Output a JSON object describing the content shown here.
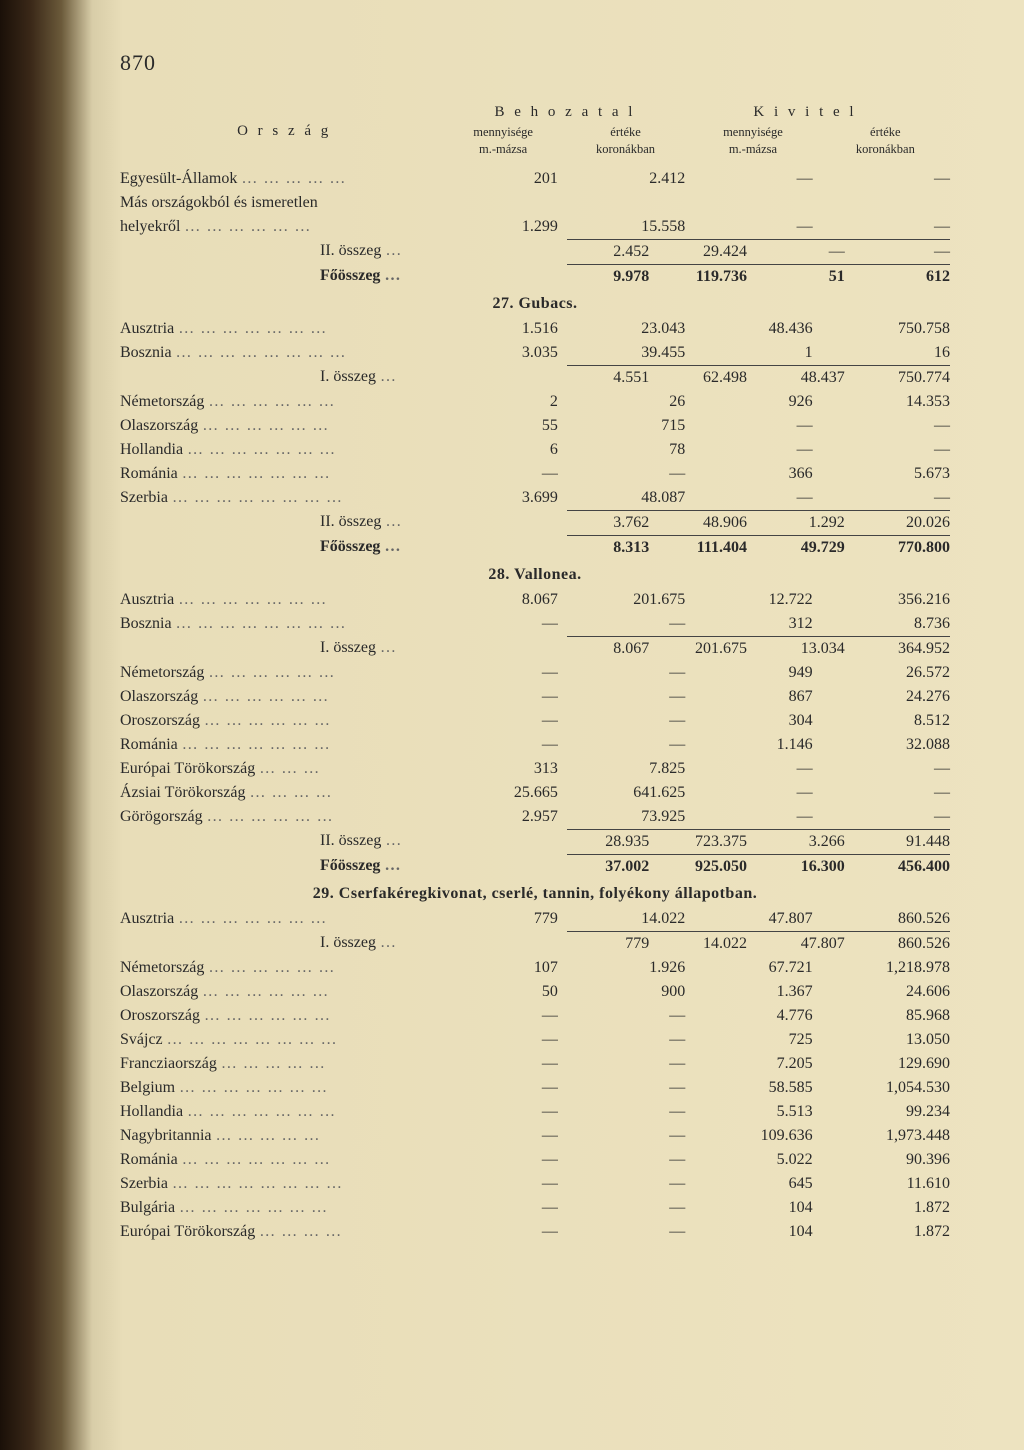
{
  "page_number": "870",
  "headers": {
    "country": "O r s z á g",
    "group1": "B e h o z a t a l",
    "group2": "K i v i t e l",
    "sub_qty": "mennyisége",
    "sub_qty2": "m.-mázsa",
    "sub_val": "értéke",
    "sub_val2": "koronákban"
  },
  "sections": [
    {
      "rows": [
        {
          "label": "Egyesült-Államok",
          "leaders": "… … … … …",
          "c1": "201",
          "c2": "2.412",
          "c3": "—",
          "c4": "—"
        },
        {
          "label": "Más országokból és ismeretlen",
          "leaders": "",
          "c1": "",
          "c2": "",
          "c3": "",
          "c4": ""
        },
        {
          "label": "  helyekről",
          "leaders": "… … … … … …",
          "c1": "1.299",
          "c2": "15.558",
          "c3": "—",
          "c4": "—"
        }
      ],
      "sums": [
        {
          "label": "II. összeg",
          "leaders": "…",
          "c1": "2.452",
          "c2": "29.424",
          "c3": "—",
          "c4": "—",
          "sum": true
        },
        {
          "label": "Főösszeg",
          "leaders": "…",
          "c1": "9.978",
          "c2": "119.736",
          "c3": "51",
          "c4": "612",
          "sum": true,
          "bold": true
        }
      ]
    },
    {
      "title": "27. Gubacs.",
      "rows": [
        {
          "label": "Ausztria",
          "leaders": "… … … … … … …",
          "c1": "1.516",
          "c2": "23.043",
          "c3": "48.436",
          "c4": "750.758"
        },
        {
          "label": "Bosznia",
          "leaders": "… … … … … … … …",
          "c1": "3.035",
          "c2": "39.455",
          "c3": "1",
          "c4": "16"
        }
      ],
      "sums": [
        {
          "label": "I. összeg",
          "leaders": "…",
          "c1": "4.551",
          "c2": "62.498",
          "c3": "48.437",
          "c4": "750.774",
          "sum": true
        }
      ],
      "rows2": [
        {
          "label": "Németország",
          "leaders": "… … … … … …",
          "c1": "2",
          "c2": "26",
          "c3": "926",
          "c4": "14.353"
        },
        {
          "label": "Olaszország",
          "leaders": "… … … … … …",
          "c1": "55",
          "c2": "715",
          "c3": "—",
          "c4": "—"
        },
        {
          "label": "Hollandia",
          "leaders": "… … … … … … …",
          "c1": "6",
          "c2": "78",
          "c3": "—",
          "c4": "—"
        },
        {
          "label": "Románia",
          "leaders": "… … … … … … …",
          "c1": "—",
          "c2": "—",
          "c3": "366",
          "c4": "5.673"
        },
        {
          "label": "Szerbia",
          "leaders": "… … … … … … … …",
          "c1": "3.699",
          "c2": "48.087",
          "c3": "—",
          "c4": "—"
        }
      ],
      "sums2": [
        {
          "label": "II. összeg",
          "leaders": "…",
          "c1": "3.762",
          "c2": "48.906",
          "c3": "1.292",
          "c4": "20.026",
          "sum": true
        },
        {
          "label": "Főösszeg",
          "leaders": "…",
          "c1": "8.313",
          "c2": "111.404",
          "c3": "49.729",
          "c4": "770.800",
          "sum": true,
          "bold": true
        }
      ]
    },
    {
      "title": "28. Vallonea.",
      "rows": [
        {
          "label": "Ausztria",
          "leaders": "… … … … … … …",
          "c1": "8.067",
          "c2": "201.675",
          "c3": "12.722",
          "c4": "356.216"
        },
        {
          "label": "Bosznia",
          "leaders": "… … … … … … … …",
          "c1": "—",
          "c2": "—",
          "c3": "312",
          "c4": "8.736"
        }
      ],
      "sums": [
        {
          "label": "I. összeg",
          "leaders": "…",
          "c1": "8.067",
          "c2": "201.675",
          "c3": "13.034",
          "c4": "364.952",
          "sum": true
        }
      ],
      "rows2": [
        {
          "label": "Németország",
          "leaders": "… … … … … …",
          "c1": "—",
          "c2": "—",
          "c3": "949",
          "c4": "26.572"
        },
        {
          "label": "Olaszország",
          "leaders": "… … … … … …",
          "c1": "—",
          "c2": "—",
          "c3": "867",
          "c4": "24.276"
        },
        {
          "label": "Oroszország",
          "leaders": "… … … … … …",
          "c1": "—",
          "c2": "—",
          "c3": "304",
          "c4": "8.512"
        },
        {
          "label": "Románia",
          "leaders": "… … … … … … …",
          "c1": "—",
          "c2": "—",
          "c3": "1.146",
          "c4": "32.088"
        },
        {
          "label": "Európai Törökország",
          "leaders": "… … …",
          "c1": "313",
          "c2": "7.825",
          "c3": "—",
          "c4": "—"
        },
        {
          "label": "Ázsiai Törökország",
          "leaders": "… … … …",
          "c1": "25.665",
          "c2": "641.625",
          "c3": "—",
          "c4": "—"
        },
        {
          "label": "Görögország",
          "leaders": "… … … … … …",
          "c1": "2.957",
          "c2": "73.925",
          "c3": "—",
          "c4": "—"
        }
      ],
      "sums2": [
        {
          "label": "II. összeg",
          "leaders": "…",
          "c1": "28.935",
          "c2": "723.375",
          "c3": "3.266",
          "c4": "91.448",
          "sum": true
        },
        {
          "label": "Főösszeg",
          "leaders": "…",
          "c1": "37.002",
          "c2": "925.050",
          "c3": "16.300",
          "c4": "456.400",
          "sum": true,
          "bold": true
        }
      ]
    },
    {
      "title": "29. Cserfakéregkivonat, cserlé, tannin, folyékony állapotban.",
      "rows": [
        {
          "label": "Ausztria",
          "leaders": "… … … … … … …",
          "c1": "779",
          "c2": "14.022",
          "c3": "47.807",
          "c4": "860.526"
        }
      ],
      "sums": [
        {
          "label": "I. összeg",
          "leaders": "…",
          "c1": "779",
          "c2": "14.022",
          "c3": "47.807",
          "c4": "860.526",
          "sum": true
        }
      ],
      "rows2": [
        {
          "label": "Németország",
          "leaders": "… … … … … …",
          "c1": "107",
          "c2": "1.926",
          "c3": "67.721",
          "c4": "1,218.978"
        },
        {
          "label": "Olaszország",
          "leaders": "… … … … … …",
          "c1": "50",
          "c2": "900",
          "c3": "1.367",
          "c4": "24.606"
        },
        {
          "label": "Oroszország",
          "leaders": "… … … … … …",
          "c1": "—",
          "c2": "—",
          "c3": "4.776",
          "c4": "85.968"
        },
        {
          "label": "Svájcz",
          "leaders": "… … … … … … … …",
          "c1": "—",
          "c2": "—",
          "c3": "725",
          "c4": "13.050"
        },
        {
          "label": "Francziaország",
          "leaders": "… … … … …",
          "c1": "—",
          "c2": "—",
          "c3": "7.205",
          "c4": "129.690"
        },
        {
          "label": "Belgium",
          "leaders": "… … … … … … …",
          "c1": "—",
          "c2": "—",
          "c3": "58.585",
          "c4": "1,054.530"
        },
        {
          "label": "Hollandia",
          "leaders": "… … … … … … …",
          "c1": "—",
          "c2": "—",
          "c3": "5.513",
          "c4": "99.234"
        },
        {
          "label": "Nagybritannia",
          "leaders": "… … … … …",
          "c1": "—",
          "c2": "—",
          "c3": "109.636",
          "c4": "1,973.448"
        },
        {
          "label": "Románia",
          "leaders": "… … … … … … …",
          "c1": "—",
          "c2": "—",
          "c3": "5.022",
          "c4": "90.396"
        },
        {
          "label": "Szerbia",
          "leaders": "… … … … … … … …",
          "c1": "—",
          "c2": "—",
          "c3": "645",
          "c4": "11.610"
        },
        {
          "label": "Bulgária",
          "leaders": "… … … … … … …",
          "c1": "—",
          "c2": "—",
          "c3": "104",
          "c4": "1.872"
        },
        {
          "label": "Európai Törökország",
          "leaders": "… … … …",
          "c1": "—",
          "c2": "—",
          "c3": "104",
          "c4": "1.872"
        }
      ]
    }
  ]
}
